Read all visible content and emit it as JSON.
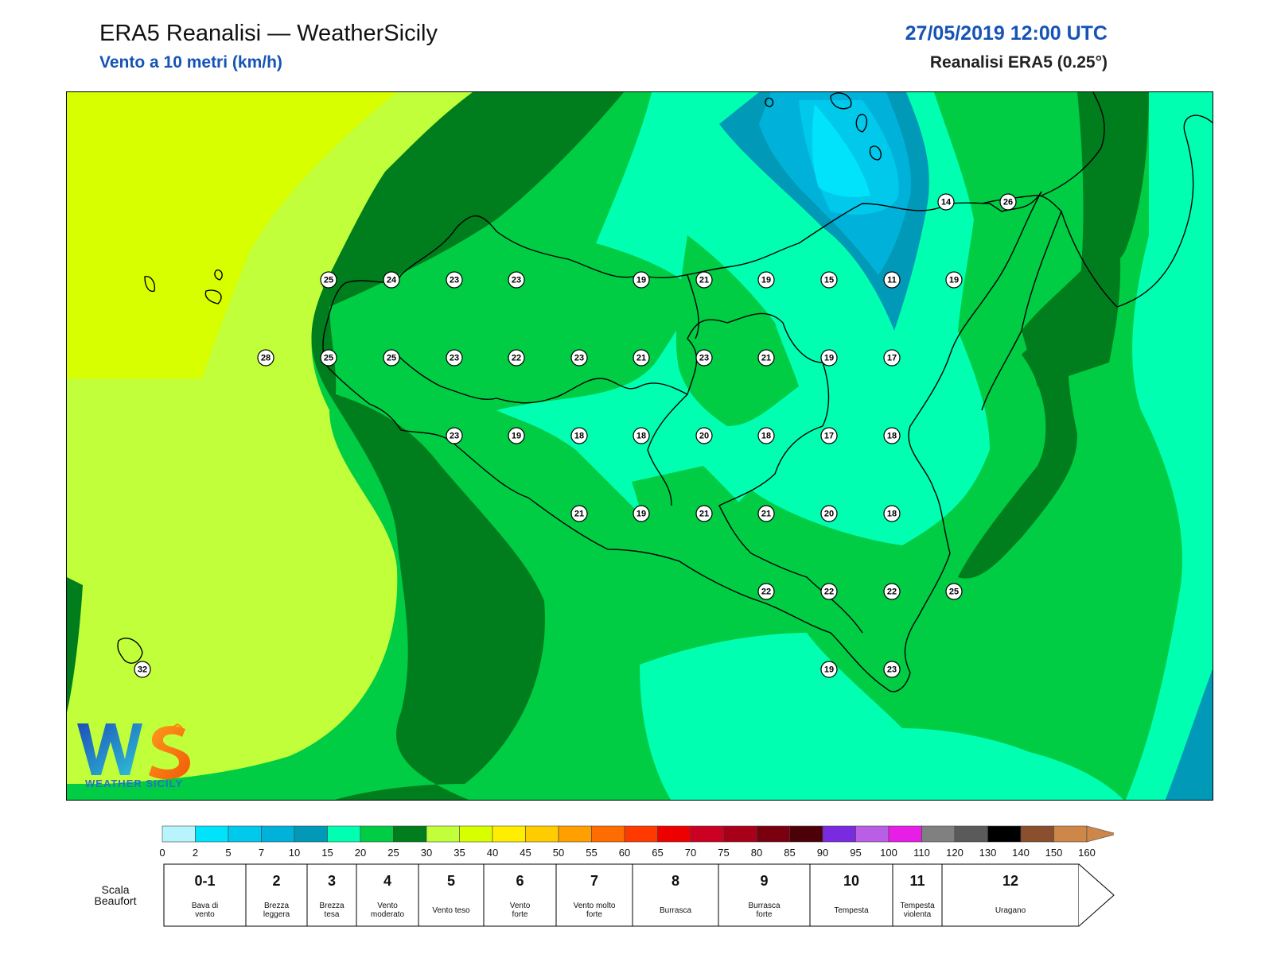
{
  "header": {
    "title": "ERA5 Reanalisi — WeatherSicily",
    "subtitle": "Vento a 10 metri (km/h)",
    "datetime": "27/05/2019 12:00 UTC",
    "model": "Reanalisi ERA5 (0.25°)"
  },
  "logo": {
    "text": "WEATHER SICILY",
    "mark": "WS"
  },
  "map": {
    "stations": [
      {
        "value": "14"
      },
      {
        "value": "26"
      },
      {
        "value": "25"
      },
      {
        "value": "24"
      },
      {
        "value": "23"
      },
      {
        "value": "23"
      },
      {
        "value": "19"
      },
      {
        "value": "21"
      },
      {
        "value": "19"
      },
      {
        "value": "15"
      },
      {
        "value": "11"
      },
      {
        "value": "19"
      },
      {
        "value": "28"
      },
      {
        "value": "25"
      },
      {
        "value": "25"
      },
      {
        "value": "23"
      },
      {
        "value": "22"
      },
      {
        "value": "23"
      },
      {
        "value": "21"
      },
      {
        "value": "23"
      },
      {
        "value": "21"
      },
      {
        "value": "19"
      },
      {
        "value": "17"
      },
      {
        "value": "23"
      },
      {
        "value": "19"
      },
      {
        "value": "18"
      },
      {
        "value": "18"
      },
      {
        "value": "20"
      },
      {
        "value": "18"
      },
      {
        "value": "17"
      },
      {
        "value": "18"
      },
      {
        "value": "21"
      },
      {
        "value": "19"
      },
      {
        "value": "21"
      },
      {
        "value": "21"
      },
      {
        "value": "20"
      },
      {
        "value": "18"
      },
      {
        "value": "22"
      },
      {
        "value": "22"
      },
      {
        "value": "22"
      },
      {
        "value": "25"
      },
      {
        "value": "19"
      },
      {
        "value": "23"
      },
      {
        "value": "32"
      }
    ]
  },
  "colorbar": {
    "ticks": [
      "0",
      "2",
      "5",
      "7",
      "10",
      "15",
      "20",
      "25",
      "30",
      "35",
      "40",
      "45",
      "50",
      "55",
      "60",
      "65",
      "70",
      "75",
      "80",
      "85",
      "90",
      "95",
      "100",
      "110",
      "120",
      "130",
      "140",
      "150",
      "160"
    ],
    "colors": [
      "#b8f4fb",
      "#00e3fb",
      "#00c9ec",
      "#00b2d9",
      "#0099b7",
      "#00ffb0",
      "#00cc44",
      "#007d1c",
      "#c1ff3a",
      "#d8ff00",
      "#ffee00",
      "#ffcc00",
      "#ff9f00",
      "#ff6d00",
      "#ff3a00",
      "#ee0000",
      "#cc0022",
      "#a80018",
      "#7a000f",
      "#4c0008",
      "#7a2be0",
      "#b95ee5",
      "#e61ee6",
      "#808080",
      "#5a5a5a",
      "#000000",
      "#8a4f2d",
      "#cd8849"
    ]
  },
  "beaufort": {
    "label": "Scala Beaufort",
    "classes": [
      {
        "num": "0-1",
        "desc": "Bava di vento"
      },
      {
        "num": "2",
        "desc": "Brezza leggera"
      },
      {
        "num": "3",
        "desc": "Brezza tesa"
      },
      {
        "num": "4",
        "desc": "Vento moderato"
      },
      {
        "num": "5",
        "desc": "Vento teso"
      },
      {
        "num": "6",
        "desc": "Vento forte"
      },
      {
        "num": "7",
        "desc": "Vento molto forte"
      },
      {
        "num": "8",
        "desc": "Burrasca"
      },
      {
        "num": "9",
        "desc": "Burrasca forte"
      },
      {
        "num": "10",
        "desc": "Tempesta"
      },
      {
        "num": "11",
        "desc": "Tempesta violenta"
      },
      {
        "num": "12",
        "desc": "Uragano"
      }
    ]
  }
}
